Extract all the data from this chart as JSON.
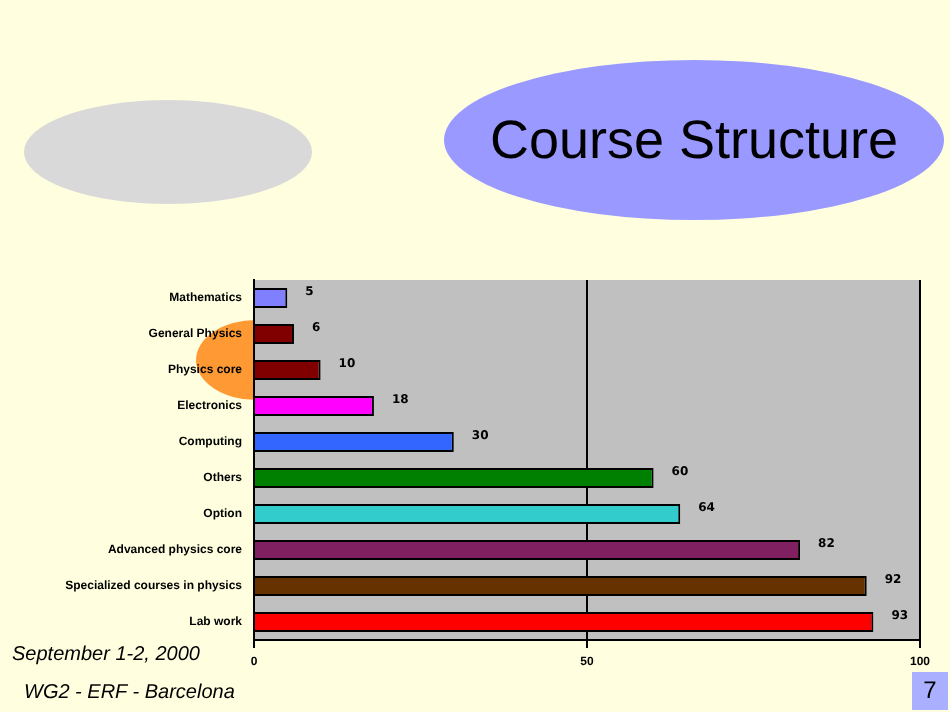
{
  "chart_data": {
    "type": "bar",
    "orientation": "horizontal",
    "title": "Course Structure",
    "categories": [
      "Mathematics",
      "General Physics",
      "Physics core",
      "Electronics",
      "Computing",
      "Others",
      "Option",
      "Advanced physics core",
      "Specialized courses in physics",
      "Lab work"
    ],
    "values": [
      5,
      6,
      10,
      18,
      30,
      60,
      64,
      82,
      92,
      93
    ],
    "colors": [
      "#8080ff",
      "#800000",
      "#800000",
      "#ff00ff",
      "#3366ff",
      "#008000",
      "#33cccc",
      "#802060",
      "#663300",
      "#ff0000"
    ],
    "xlim": [
      0,
      100
    ],
    "xticks": [
      0,
      50,
      100
    ],
    "grid": "x",
    "legend": false,
    "data_labels": true,
    "annotations": [
      "September 1-2, 2000",
      "WG2 - ERF - Barcelona",
      "7"
    ]
  }
}
